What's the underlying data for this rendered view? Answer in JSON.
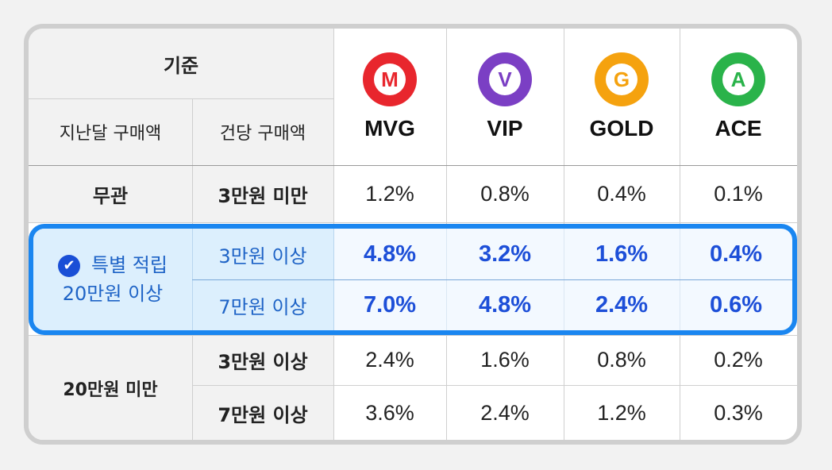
{
  "header": {
    "criteria": "기준",
    "last_month": "지난달 구매액",
    "per_purchase": "건당 구매액"
  },
  "tiers": [
    {
      "name": "MVG",
      "letter": "M",
      "color": "#e8262d"
    },
    {
      "name": "VIP",
      "letter": "V",
      "color": "#7b3fc4"
    },
    {
      "name": "GOLD",
      "letter": "G",
      "color": "#f5a20f"
    },
    {
      "name": "ACE",
      "letter": "A",
      "color": "#2ab34a"
    }
  ],
  "rows": {
    "any": {
      "last_month": "무관",
      "per_purchase": "3만원 미만",
      "values": [
        "1.2%",
        "0.8%",
        "0.4%",
        "0.1%"
      ]
    },
    "special": {
      "label_line1": "특별 적립",
      "label_line2": "20만원 이상",
      "check_icon": "✔",
      "sub": [
        {
          "per_purchase": "3만원 이상",
          "values": [
            "4.8%",
            "3.2%",
            "1.6%",
            "0.4%"
          ]
        },
        {
          "per_purchase": "7만원 이상",
          "values": [
            "7.0%",
            "4.8%",
            "2.4%",
            "0.6%"
          ]
        }
      ]
    },
    "under": {
      "last_month": "20만원 미만",
      "sub": [
        {
          "per_purchase": "3만원 이상",
          "values": [
            "2.4%",
            "1.6%",
            "0.8%",
            "0.2%"
          ]
        },
        {
          "per_purchase": "7만원 이상",
          "values": [
            "3.6%",
            "2.4%",
            "1.2%",
            "0.3%"
          ]
        }
      ]
    }
  }
}
